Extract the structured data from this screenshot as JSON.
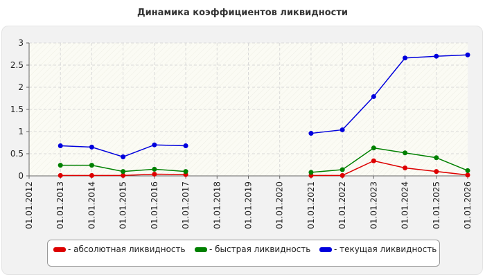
{
  "chart_data": {
    "type": "line",
    "title": "Динамика коэффициентов ликвидности",
    "xlabel": "",
    "ylabel": "",
    "categories": [
      "01.01.2012",
      "01.01.2013",
      "01.01.2014",
      "01.01.2015",
      "01.01.2016",
      "01.01.2017",
      "01.01.2018",
      "01.01.2019",
      "01.01.2020",
      "01.01.2021",
      "01.01.2022",
      "01.01.2023",
      "01.01.2024",
      "01.01.2025",
      "01.01.2026"
    ],
    "ylim": [
      0,
      3
    ],
    "yticks": [
      "0",
      "0.5",
      "1",
      "1.5",
      "2",
      "2.5",
      "3"
    ],
    "grid": true,
    "legend_position": "bottom",
    "series": [
      {
        "name": "- абсолютная ликвидность",
        "color": "#dd0000",
        "values": [
          null,
          0.01,
          0.01,
          0.01,
          0.04,
          0.03,
          null,
          null,
          null,
          0.01,
          0.01,
          0.34,
          0.18,
          0.1,
          0.02
        ]
      },
      {
        "name": "- быстрая ликвидность",
        "color": "#008000",
        "values": [
          null,
          0.24,
          0.24,
          0.1,
          0.15,
          0.1,
          null,
          null,
          null,
          0.08,
          0.14,
          0.63,
          0.52,
          0.41,
          0.12
        ]
      },
      {
        "name": "- текущая ликвидность",
        "color": "#0000dd",
        "values": [
          null,
          0.68,
          0.65,
          0.43,
          0.7,
          0.68,
          null,
          null,
          null,
          0.96,
          1.04,
          1.79,
          2.66,
          2.7,
          2.73
        ]
      }
    ]
  }
}
